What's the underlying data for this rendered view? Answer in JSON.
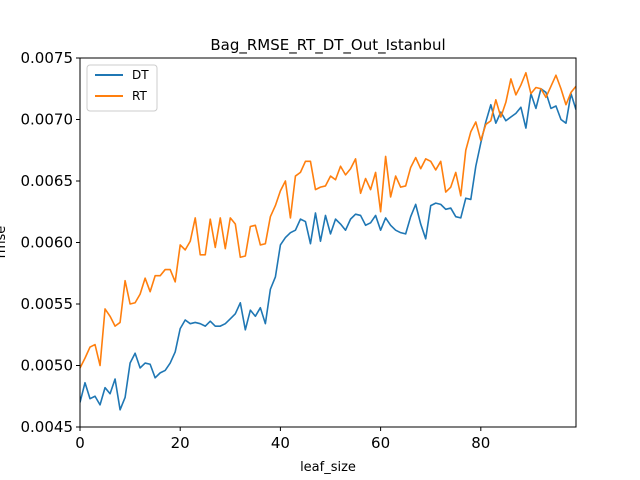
{
  "chart_data": {
    "type": "line",
    "title": "Bag_RMSE_RT_DT_Out_Istanbul",
    "xlabel": "leaf_size",
    "ylabel": "rmse",
    "xlim": [
      0,
      99
    ],
    "ylim": [
      0.0045,
      0.0075
    ],
    "xticks": [
      0,
      20,
      40,
      60,
      80
    ],
    "xtick_labels": [
      "0",
      "20",
      "40",
      "60",
      "80"
    ],
    "yticks": [
      0.0045,
      0.005,
      0.0055,
      0.006,
      0.0065,
      0.007,
      0.0075
    ],
    "ytick_labels": [
      "0.0045",
      "0.0050",
      "0.0055",
      "0.0060",
      "0.0065",
      "0.0070",
      "0.0075"
    ],
    "legend_position": "top-left",
    "grid": false,
    "x": [
      0,
      1,
      2,
      3,
      4,
      5,
      6,
      7,
      8,
      9,
      10,
      11,
      12,
      13,
      14,
      15,
      16,
      17,
      18,
      19,
      20,
      21,
      22,
      23,
      24,
      25,
      26,
      27,
      28,
      29,
      30,
      31,
      32,
      33,
      34,
      35,
      36,
      37,
      38,
      39,
      40,
      41,
      42,
      43,
      44,
      45,
      46,
      47,
      48,
      49,
      50,
      51,
      52,
      53,
      54,
      55,
      56,
      57,
      58,
      59,
      60,
      61,
      62,
      63,
      64,
      65,
      66,
      67,
      68,
      69,
      70,
      71,
      72,
      73,
      74,
      75,
      76,
      77,
      78,
      79,
      80,
      81,
      82,
      83,
      84,
      85,
      86,
      87,
      88,
      89,
      90,
      91,
      92,
      93,
      94,
      95,
      96,
      97,
      98,
      99
    ],
    "series": [
      {
        "name": "DT",
        "color": "#1f77b4",
        "values": [
          0.0047,
          0.00486,
          0.00473,
          0.00475,
          0.00468,
          0.00482,
          0.00477,
          0.00489,
          0.00464,
          0.00474,
          0.00502,
          0.0051,
          0.00498,
          0.00502,
          0.00501,
          0.0049,
          0.00494,
          0.00496,
          0.00502,
          0.00511,
          0.0053,
          0.00537,
          0.00534,
          0.00535,
          0.00534,
          0.00532,
          0.00536,
          0.00532,
          0.00532,
          0.00534,
          0.00538,
          0.00542,
          0.00551,
          0.00529,
          0.00545,
          0.0054,
          0.00547,
          0.00534,
          0.00562,
          0.00572,
          0.00598,
          0.00604,
          0.00608,
          0.0061,
          0.00619,
          0.00617,
          0.00599,
          0.00624,
          0.00601,
          0.00622,
          0.00607,
          0.00619,
          0.00615,
          0.0061,
          0.00619,
          0.00623,
          0.00622,
          0.00614,
          0.00616,
          0.00622,
          0.0061,
          0.0062,
          0.00614,
          0.0061,
          0.00608,
          0.00607,
          0.00621,
          0.00631,
          0.00615,
          0.00603,
          0.0063,
          0.00632,
          0.00631,
          0.00627,
          0.00628,
          0.00621,
          0.0062,
          0.00636,
          0.00635,
          0.00662,
          0.00681,
          0.00698,
          0.00712,
          0.00697,
          0.00706,
          0.00699,
          0.00702,
          0.00705,
          0.0071,
          0.00693,
          0.00721,
          0.00709,
          0.00725,
          0.00722,
          0.00709,
          0.00711,
          0.007,
          0.00697,
          0.00721,
          0.00708
        ],
        "value_note": ""
      },
      {
        "name": "RT",
        "color": "#ff7f0e",
        "values": [
          0.00498,
          0.00506,
          0.00515,
          0.00517,
          0.005,
          0.00546,
          0.0054,
          0.00532,
          0.00535,
          0.00569,
          0.0055,
          0.00551,
          0.00558,
          0.00571,
          0.0056,
          0.00573,
          0.00573,
          0.00578,
          0.00578,
          0.00568,
          0.00598,
          0.00594,
          0.00601,
          0.0062,
          0.0059,
          0.0059,
          0.00619,
          0.00596,
          0.0062,
          0.00595,
          0.0062,
          0.00615,
          0.00588,
          0.00589,
          0.00613,
          0.00614,
          0.00598,
          0.00599,
          0.00621,
          0.0063,
          0.00642,
          0.0065,
          0.0062,
          0.00654,
          0.00657,
          0.00666,
          0.00666,
          0.00643,
          0.00645,
          0.00646,
          0.00654,
          0.00651,
          0.00662,
          0.00655,
          0.0066,
          0.00668,
          0.0064,
          0.00652,
          0.00643,
          0.00657,
          0.00625,
          0.0067,
          0.00637,
          0.00654,
          0.00645,
          0.00646,
          0.00661,
          0.00669,
          0.0066,
          0.00668,
          0.00666,
          0.00659,
          0.00666,
          0.00641,
          0.00645,
          0.00657,
          0.00638,
          0.00675,
          0.0069,
          0.00698,
          0.00683,
          0.00696,
          0.00699,
          0.00716,
          0.00702,
          0.00714,
          0.00733,
          0.0072,
          0.00728,
          0.00738,
          0.00721,
          0.00726,
          0.00725,
          0.00718,
          0.00727,
          0.00736,
          0.00725,
          0.00712,
          0.00722,
          0.00727
        ]
      }
    ]
  }
}
